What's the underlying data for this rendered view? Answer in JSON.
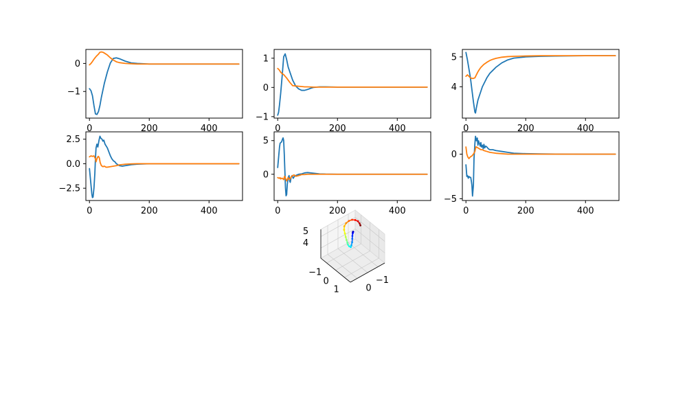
{
  "chart_data": [
    {
      "type": "line",
      "xlim": [
        -12,
        512
      ],
      "ylim": [
        -1.95,
        0.5
      ],
      "xticks": [
        0,
        200,
        400
      ],
      "yticks": [
        -1,
        0
      ],
      "series": [
        {
          "color": "#1f77b4",
          "x": [
            0,
            5,
            10,
            15,
            20,
            25,
            30,
            35,
            40,
            50,
            60,
            70,
            80,
            90,
            100,
            120,
            140,
            160,
            200,
            300,
            400,
            500
          ],
          "y": [
            -0.9,
            -0.97,
            -1.15,
            -1.5,
            -1.8,
            -1.82,
            -1.72,
            -1.5,
            -1.2,
            -0.7,
            -0.3,
            0.02,
            0.18,
            0.2,
            0.17,
            0.08,
            0.02,
            0.0,
            -0.02,
            -0.02,
            -0.02,
            -0.02
          ]
        },
        {
          "color": "#ff7f0e",
          "x": [
            0,
            5,
            10,
            15,
            20,
            25,
            30,
            35,
            40,
            45,
            50,
            60,
            70,
            80,
            90,
            100,
            120,
            140,
            160,
            200,
            300,
            400,
            500
          ],
          "y": [
            -0.05,
            0.0,
            0.07,
            0.15,
            0.22,
            0.28,
            0.33,
            0.4,
            0.41,
            0.4,
            0.37,
            0.3,
            0.2,
            0.12,
            0.06,
            0.03,
            0.0,
            -0.01,
            -0.02,
            -0.02,
            -0.02,
            -0.02,
            -0.02
          ]
        }
      ]
    },
    {
      "type": "line",
      "xlim": [
        -12,
        512
      ],
      "ylim": [
        -1.05,
        1.3
      ],
      "xticks": [
        0,
        200,
        400
      ],
      "yticks": [
        -1,
        0,
        1
      ],
      "series": [
        {
          "color": "#1f77b4",
          "x": [
            0,
            3,
            6,
            10,
            15,
            20,
            25,
            30,
            35,
            40,
            50,
            60,
            70,
            80,
            90,
            100,
            110,
            120,
            140,
            160,
            200,
            300,
            400,
            500
          ],
          "y": [
            -0.95,
            -0.85,
            -0.6,
            -0.2,
            0.4,
            1.05,
            1.15,
            0.95,
            0.7,
            0.55,
            0.25,
            0.05,
            -0.05,
            -0.1,
            -0.1,
            -0.07,
            -0.03,
            0.0,
            0.02,
            0.02,
            0.01,
            0.01,
            0.01,
            0.01
          ]
        },
        {
          "color": "#ff7f0e",
          "x": [
            0,
            5,
            10,
            15,
            20,
            25,
            30,
            35,
            40,
            45,
            50,
            60,
            70,
            80,
            90,
            100,
            120,
            140,
            200,
            300,
            400,
            500
          ],
          "y": [
            0.65,
            0.6,
            0.52,
            0.47,
            0.44,
            0.38,
            0.32,
            0.25,
            0.18,
            0.12,
            0.06,
            0.05,
            0.04,
            0.03,
            0.02,
            0.02,
            0.01,
            0.01,
            0.01,
            0.01,
            0.01,
            0.01
          ]
        }
      ]
    },
    {
      "type": "line",
      "xlim": [
        -12,
        512
      ],
      "ylim": [
        2.95,
        5.25
      ],
      "xticks": [
        0,
        200,
        400
      ],
      "yticks": [
        4,
        5
      ],
      "series": [
        {
          "color": "#1f77b4",
          "x": [
            0,
            5,
            10,
            15,
            20,
            25,
            30,
            32,
            35,
            40,
            45,
            50,
            55,
            60,
            70,
            80,
            90,
            100,
            120,
            140,
            160,
            200,
            250,
            300,
            400,
            500
          ],
          "y": [
            5.15,
            4.9,
            4.6,
            4.3,
            3.9,
            3.5,
            3.15,
            3.12,
            3.3,
            3.55,
            3.7,
            3.85,
            4.0,
            4.1,
            4.3,
            4.45,
            4.55,
            4.65,
            4.8,
            4.9,
            4.96,
            5.0,
            5.02,
            5.03,
            5.04,
            5.04
          ]
        },
        {
          "color": "#ff7f0e",
          "x": [
            0,
            5,
            10,
            15,
            20,
            25,
            30,
            35,
            40,
            45,
            50,
            60,
            70,
            80,
            90,
            100,
            120,
            140,
            160,
            200,
            250,
            300,
            400,
            500
          ],
          "y": [
            4.35,
            4.4,
            4.35,
            4.3,
            4.28,
            4.28,
            4.3,
            4.4,
            4.5,
            4.58,
            4.65,
            4.75,
            4.82,
            4.88,
            4.92,
            4.95,
            4.99,
            5.01,
            5.02,
            5.03,
            5.04,
            5.04,
            5.04,
            5.04
          ]
        }
      ]
    },
    {
      "type": "line",
      "xlim": [
        -12,
        512
      ],
      "ylim": [
        -3.75,
        3.25
      ],
      "xticks": [
        0,
        200,
        400
      ],
      "yticks": [
        -2.5,
        0.0,
        2.5
      ],
      "series": [
        {
          "color": "#1f77b4",
          "x": [
            0,
            4,
            8,
            10,
            12,
            15,
            18,
            20,
            22,
            25,
            28,
            32,
            35,
            38,
            42,
            45,
            48,
            52,
            56,
            60,
            65,
            70,
            75,
            80,
            85,
            90,
            100,
            110,
            120,
            140,
            160,
            200,
            300,
            400,
            500
          ],
          "y": [
            -0.5,
            -1.8,
            -3.1,
            -3.45,
            -3.4,
            -2.5,
            -1.0,
            0.5,
            1.6,
            2.0,
            1.7,
            2.4,
            2.8,
            2.6,
            2.5,
            2.3,
            2.4,
            2.0,
            1.8,
            1.6,
            1.2,
            0.8,
            0.5,
            0.3,
            0.2,
            0.0,
            -0.2,
            -0.25,
            -0.2,
            -0.1,
            -0.05,
            0.0,
            0.0,
            0.0,
            0.0
          ]
        },
        {
          "color": "#ff7f0e",
          "x": [
            0,
            5,
            10,
            15,
            20,
            22,
            25,
            28,
            30,
            33,
            36,
            40,
            45,
            50,
            55,
            60,
            70,
            80,
            90,
            100,
            120,
            140,
            160,
            200,
            300,
            400,
            500
          ],
          "y": [
            0.7,
            0.8,
            0.75,
            0.8,
            0.5,
            0.2,
            0.5,
            0.7,
            0.75,
            0.6,
            0.1,
            -0.2,
            -0.3,
            -0.25,
            -0.35,
            -0.35,
            -0.3,
            -0.25,
            -0.2,
            -0.12,
            -0.05,
            -0.02,
            0.0,
            0.0,
            0.0,
            0.0,
            0.0
          ]
        }
      ]
    },
    {
      "type": "line",
      "xlim": [
        -12,
        512
      ],
      "ylim": [
        -3.9,
        6.3
      ],
      "xticks": [
        0,
        200,
        400
      ],
      "yticks": [
        0,
        5
      ],
      "series": [
        {
          "color": "#1f77b4",
          "x": [
            0,
            3,
            6,
            8,
            10,
            13,
            16,
            18,
            20,
            22,
            24,
            26,
            28,
            30,
            32,
            35,
            38,
            40,
            42,
            45,
            48,
            52,
            56,
            60,
            65,
            70,
            80,
            90,
            100,
            110,
            120,
            130,
            140,
            160,
            200,
            300,
            400,
            500
          ],
          "y": [
            1.0,
            2.5,
            4.0,
            4.6,
            4.7,
            4.8,
            5.2,
            5.4,
            5.0,
            3.0,
            0.5,
            -2.0,
            -3.2,
            -3.0,
            -1.5,
            -0.5,
            -0.2,
            -1.0,
            -1.2,
            -0.4,
            -0.2,
            -0.6,
            -0.3,
            -0.2,
            -0.1,
            0.0,
            0.05,
            0.2,
            0.25,
            0.2,
            0.15,
            0.1,
            0.05,
            0.02,
            0.0,
            0.0,
            0.0,
            0.0
          ]
        },
        {
          "color": "#ff7f0e",
          "x": [
            0,
            5,
            8,
            10,
            13,
            16,
            20,
            23,
            26,
            30,
            35,
            40,
            45,
            50,
            55,
            60,
            70,
            80,
            90,
            100,
            120,
            140,
            160,
            200,
            300,
            400,
            500
          ],
          "y": [
            -0.5,
            -0.6,
            -0.5,
            -0.7,
            -0.6,
            -0.6,
            -0.8,
            -0.3,
            -0.6,
            -1.0,
            -0.5,
            -0.8,
            -0.4,
            -0.2,
            -0.1,
            -0.3,
            -0.2,
            -0.05,
            -0.05,
            0.0,
            0.0,
            0.0,
            0.0,
            0.0,
            0.0,
            0.0,
            0.0
          ]
        }
      ]
    },
    {
      "type": "line",
      "xlim": [
        -12,
        512
      ],
      "ylim": [
        -5.2,
        2.5
      ],
      "xticks": [
        0,
        200,
        400
      ],
      "yticks": [
        -5,
        0
      ],
      "series": [
        {
          "color": "#1f77b4",
          "x": [
            0,
            3,
            5,
            8,
            10,
            13,
            16,
            18,
            20,
            22,
            25,
            27,
            30,
            32,
            35,
            38,
            40,
            42,
            45,
            48,
            50,
            52,
            55,
            58,
            60,
            63,
            66,
            70,
            75,
            80,
            90,
            100,
            110,
            120,
            140,
            160,
            200,
            250,
            300,
            400,
            500
          ],
          "y": [
            -1.2,
            -2.5,
            -2.4,
            -2.7,
            -2.5,
            -2.6,
            -2.6,
            -3.0,
            -3.5,
            -4.7,
            -3.5,
            -0.5,
            1.2,
            2.0,
            1.5,
            1.8,
            1.0,
            1.5,
            1.2,
            0.9,
            1.3,
            0.8,
            1.0,
            0.6,
            1.1,
            0.7,
            0.9,
            0.8,
            0.6,
            0.5,
            0.5,
            0.4,
            0.35,
            0.3,
            0.2,
            0.1,
            0.05,
            0.02,
            0.01,
            0.0,
            0.0
          ]
        },
        {
          "color": "#ff7f0e",
          "x": [
            0,
            3,
            6,
            10,
            15,
            20,
            25,
            30,
            33,
            35,
            40,
            45,
            50,
            55,
            60,
            70,
            80,
            100,
            120,
            140,
            200,
            300,
            400,
            500
          ],
          "y": [
            0.8,
            0.0,
            -0.3,
            -0.5,
            -0.3,
            -0.2,
            0.0,
            0.3,
            0.8,
            0.8,
            0.7,
            0.6,
            0.5,
            0.5,
            0.4,
            0.3,
            0.2,
            0.1,
            0.05,
            0.0,
            0.0,
            0.0,
            0.0,
            0.0
          ]
        }
      ]
    },
    {
      "type": "scatter",
      "projection": "3d",
      "xlim": [
        -1.5,
        1.5
      ],
      "ylim": [
        -1.5,
        1.5
      ],
      "zlim": [
        3.0,
        5.5
      ],
      "xticks": [
        -1,
        0,
        1
      ],
      "yticks": [
        0,
        -1
      ],
      "zticks": [
        4,
        5
      ],
      "grid": true,
      "colormap": "jet",
      "points": [
        [
          0.0,
          0.0,
          5.05
        ],
        [
          0.05,
          0.08,
          5.02
        ],
        [
          0.1,
          0.12,
          4.95
        ],
        [
          0.12,
          0.1,
          4.85
        ],
        [
          0.1,
          0.05,
          4.7
        ],
        [
          0.05,
          0.0,
          4.55
        ],
        [
          -0.05,
          -0.1,
          4.4
        ],
        [
          -0.15,
          -0.25,
          4.3
        ],
        [
          -0.2,
          -0.35,
          4.25
        ],
        [
          -0.1,
          -0.4,
          4.28
        ],
        [
          0.05,
          -0.38,
          4.3
        ],
        [
          0.2,
          -0.3,
          4.32
        ],
        [
          0.4,
          -0.2,
          4.35
        ],
        [
          0.6,
          -0.1,
          4.4
        ],
        [
          0.8,
          0.0,
          4.5
        ],
        [
          1.0,
          0.1,
          4.6
        ],
        [
          1.15,
          0.25,
          4.7
        ],
        [
          1.2,
          0.45,
          4.8
        ],
        [
          1.15,
          0.65,
          4.9
        ],
        [
          1.0,
          0.8,
          5.0
        ],
        [
          0.8,
          0.9,
          5.05
        ],
        [
          0.55,
          0.92,
          5.1
        ],
        [
          0.3,
          0.85,
          5.12
        ],
        [
          0.1,
          0.75,
          5.14
        ]
      ]
    }
  ]
}
